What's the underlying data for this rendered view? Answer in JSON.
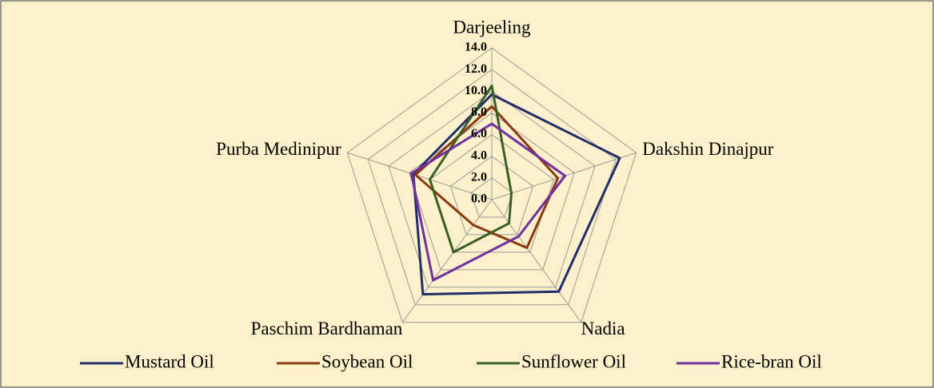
{
  "chart_data": {
    "type": "radar",
    "categories": [
      "Darjeeling",
      "Dakshin Dinajpur",
      "Nadia",
      "Paschim Bardhaman",
      "Purba Medinipur"
    ],
    "series": [
      {
        "name": "Mustard Oil",
        "color": "#1f2d6b",
        "values": [
          9.7,
          12.4,
          10.5,
          10.8,
          7.6
        ]
      },
      {
        "name": "Soybean Oil",
        "color": "#8b3a0f",
        "values": [
          8.6,
          6.4,
          5.5,
          2.9,
          7.4
        ]
      },
      {
        "name": "Sunflower Oil",
        "color": "#3a5f24",
        "values": [
          10.5,
          1.9,
          2.7,
          6.0,
          6.0
        ]
      },
      {
        "name": "Rice-bran Oil",
        "color": "#7030a0",
        "values": [
          7.0,
          7.1,
          4.2,
          9.2,
          7.8
        ]
      }
    ],
    "rlim": [
      0,
      14
    ],
    "rticks": [
      {
        "value": 0,
        "label": "0.0"
      },
      {
        "value": 2,
        "label": "2.0"
      },
      {
        "value": 4,
        "label": "4.0"
      },
      {
        "value": 6,
        "label": "6.0"
      },
      {
        "value": 8,
        "label": "8.0"
      },
      {
        "value": 10,
        "label": "10.0"
      },
      {
        "value": 12,
        "label": "12.0"
      },
      {
        "value": 14,
        "label": "14.0"
      }
    ],
    "grid": true,
    "legend": "bottom"
  }
}
